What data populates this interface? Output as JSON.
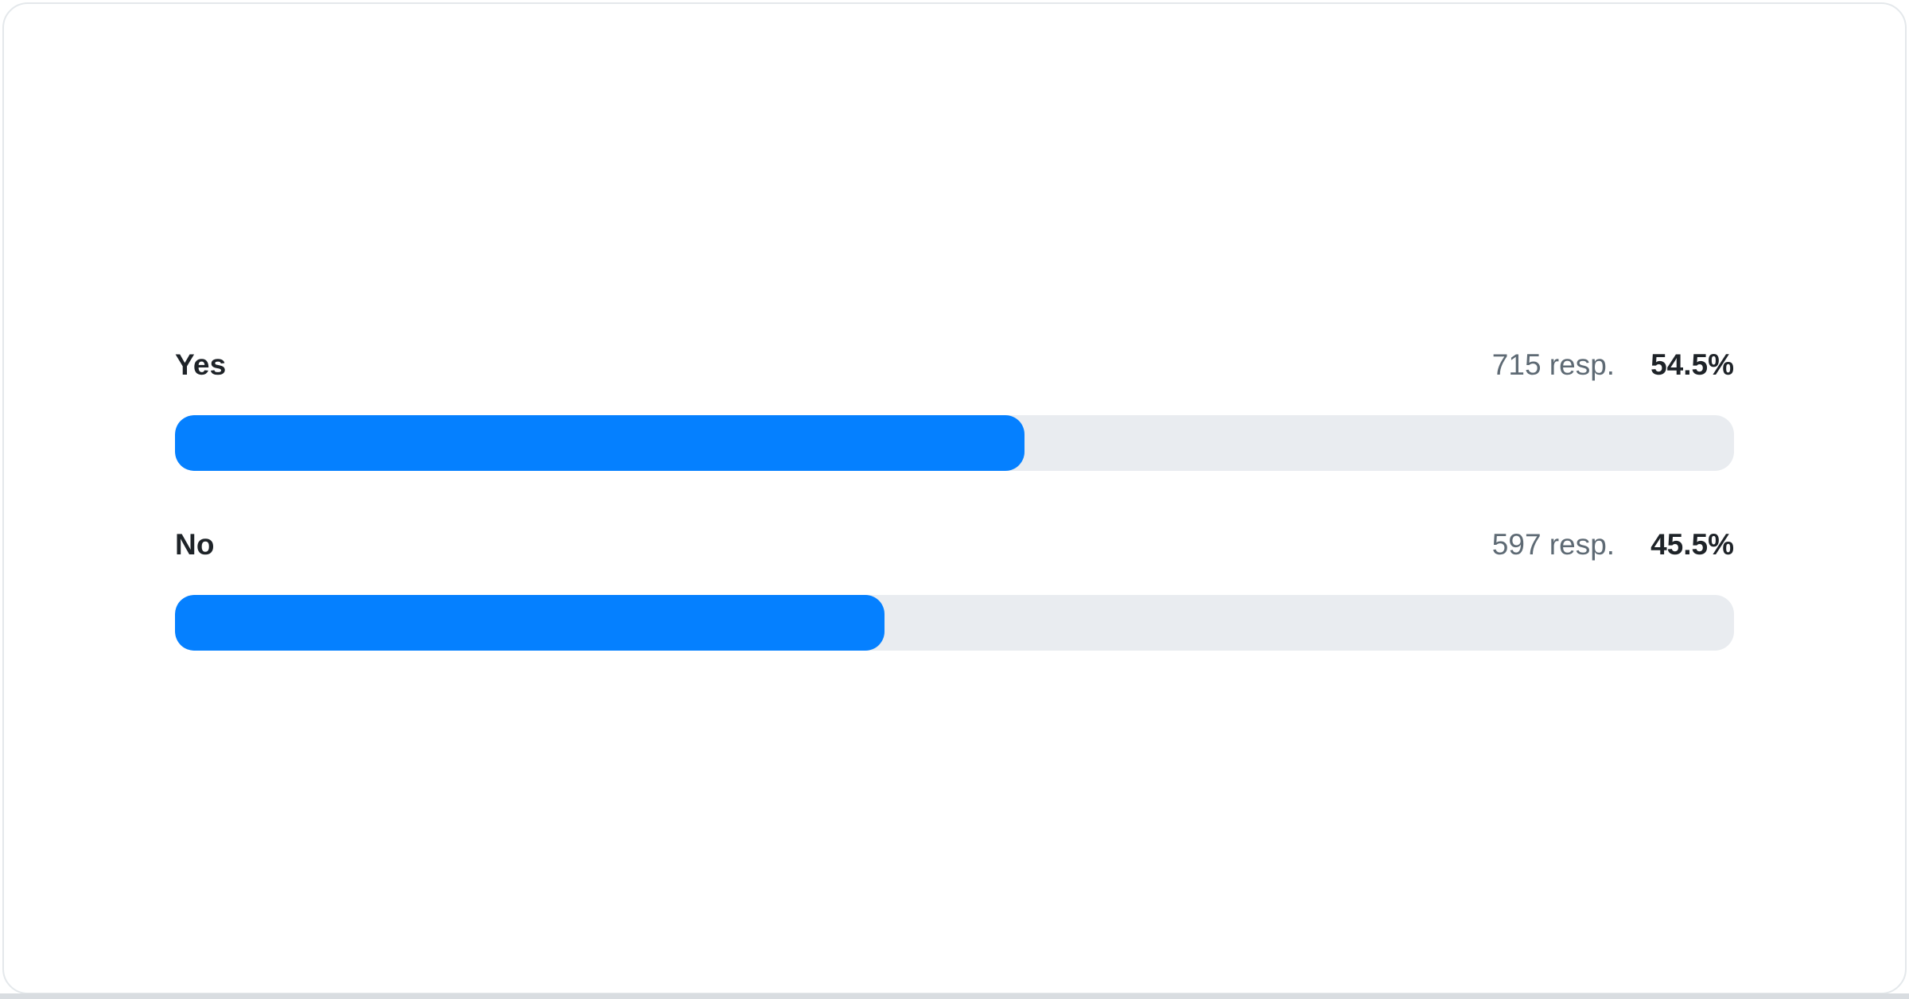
{
  "chart_data": {
    "type": "bar",
    "orientation": "horizontal",
    "title": "",
    "xlabel": "",
    "ylabel": "",
    "categories": [
      "Yes",
      "No"
    ],
    "values": [
      54.5,
      45.5
    ],
    "value_labels": [
      "54.5%",
      "45.5%"
    ],
    "response_counts": [
      715,
      597
    ],
    "response_labels": [
      "715 resp.",
      "597 resp."
    ],
    "xlim": [
      0,
      100
    ],
    "grid": false,
    "legend": false,
    "bar_color": "#0580ff",
    "track_color": "#e9ecf0"
  },
  "poll": {
    "options": [
      {
        "label": "Yes",
        "responses_text": "715 resp.",
        "percent_text": "54.5%",
        "percent": 54.5
      },
      {
        "label": "No",
        "responses_text": "597 resp.",
        "percent_text": "45.5%",
        "percent": 45.5
      }
    ]
  },
  "colors": {
    "bar_fill": "#0580ff",
    "bar_track": "#e9ecf0",
    "label_text": "#1e2328",
    "responses_text": "#5e6a74",
    "card_border": "#e4e8eb",
    "bottom_edge": "#d9dde1"
  }
}
